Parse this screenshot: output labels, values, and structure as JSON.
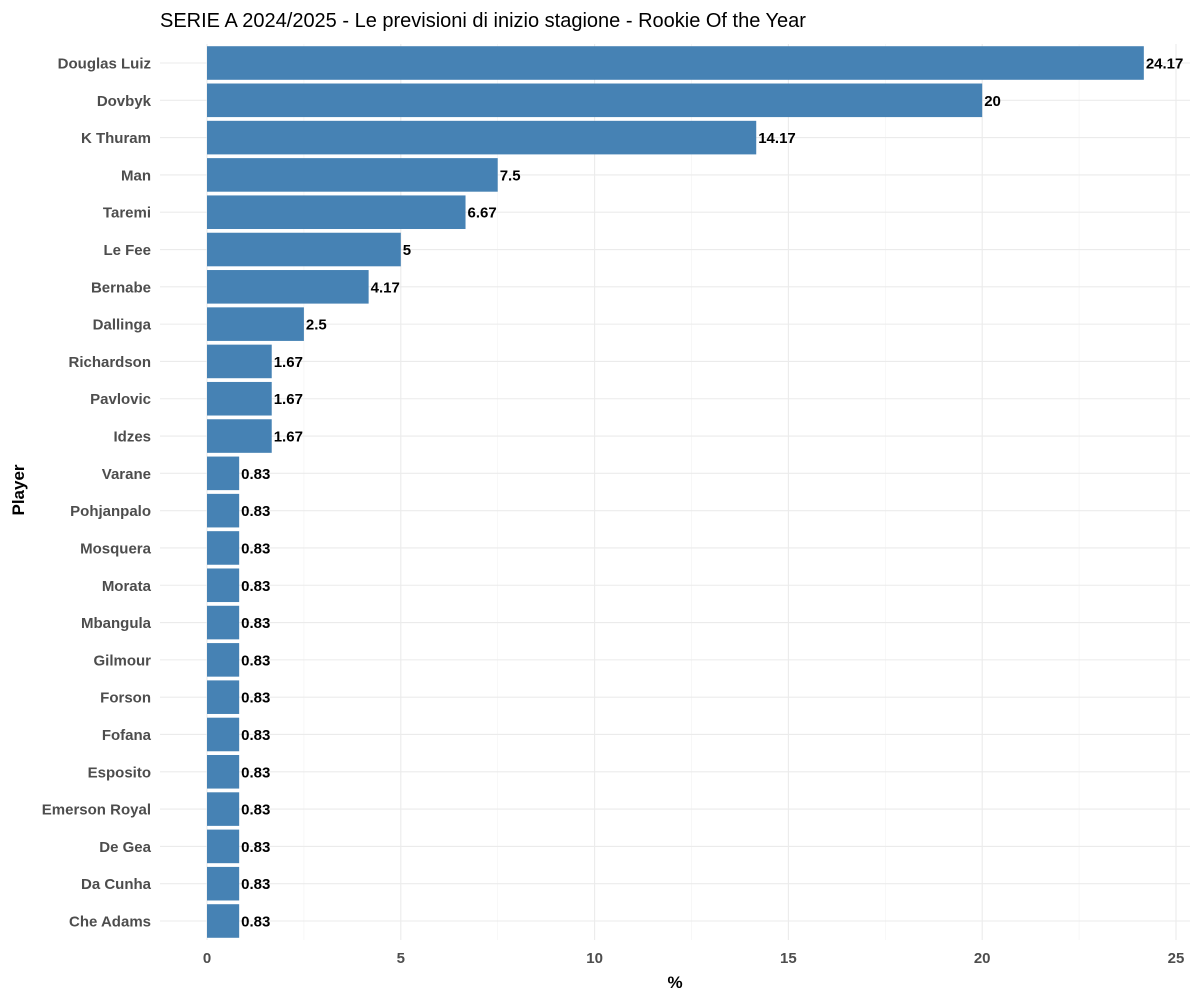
{
  "chart_data": {
    "type": "bar",
    "orientation": "horizontal",
    "title": "SERIE A 2024/2025 - Le previsioni di inizio stagione - Rookie Of the Year",
    "xlabel": "%",
    "ylabel": "Player",
    "categories": [
      "Douglas Luiz",
      "Dovbyk",
      "K Thuram",
      "Man",
      "Taremi",
      "Le Fee",
      "Bernabe",
      "Dallinga",
      "Richardson",
      "Pavlovic",
      "Idzes",
      "Varane",
      "Pohjanpalo",
      "Mosquera",
      "Morata",
      "Mbangula",
      "Gilmour",
      "Forson",
      "Fofana",
      "Esposito",
      "Emerson Royal",
      "De Gea",
      "Da Cunha",
      "Che Adams"
    ],
    "values": [
      24.17,
      20,
      14.17,
      7.5,
      6.67,
      5,
      4.17,
      2.5,
      1.67,
      1.67,
      1.67,
      0.83,
      0.83,
      0.83,
      0.83,
      0.83,
      0.83,
      0.83,
      0.83,
      0.83,
      0.83,
      0.83,
      0.83,
      0.83
    ],
    "value_labels": [
      "24.17",
      "20",
      "14.17",
      "7.5",
      "6.67",
      "5",
      "4.17",
      "2.5",
      "1.67",
      "1.67",
      "1.67",
      "0.83",
      "0.83",
      "0.83",
      "0.83",
      "0.83",
      "0.83",
      "0.83",
      "0.83",
      "0.83",
      "0.83",
      "0.83",
      "0.83",
      "0.83"
    ],
    "xlim": [
      0,
      25
    ],
    "x_ticks": [
      0,
      5,
      10,
      15,
      20,
      25
    ],
    "x_tick_labels": [
      "0",
      "5",
      "10",
      "15",
      "20",
      "25"
    ],
    "grid": true,
    "legend": "none",
    "bar_color": "#4682b4"
  }
}
